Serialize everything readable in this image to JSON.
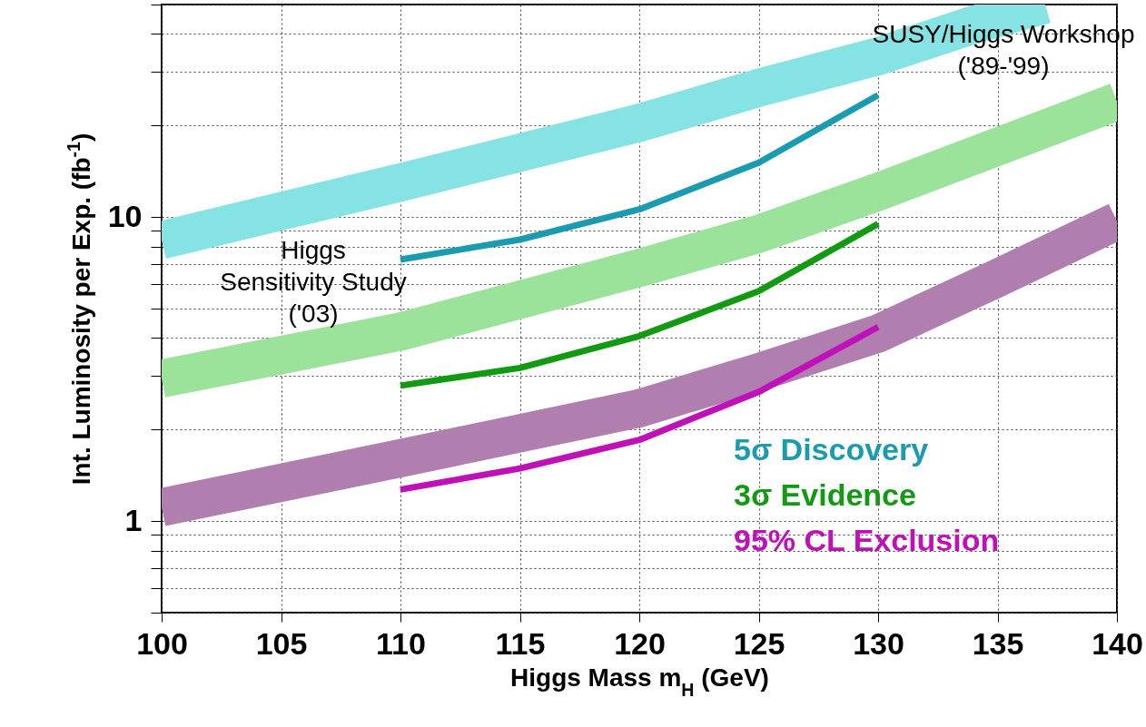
{
  "chart_data": {
    "type": "line",
    "xlabel": "Higgs Mass m$_{H}$ (GeV)",
    "ylabel": "Int. Luminosity per Exp. (fb$^{-1}$)",
    "log": true,
    "grid": true,
    "legend": "bottom right",
    "marker": "none",
    "line_style": "solid",
    "xlim": [
      100,
      140
    ],
    "xticks": [
      100,
      105,
      110,
      115,
      120,
      125,
      130,
      135,
      140
    ],
    "ylim": [
      0.5,
      50
    ],
    "yticks": [
      {
        "value": 0.5,
        "label": null
      },
      {
        "value": 0.6,
        "label": null
      },
      {
        "value": 0.7,
        "label": null
      },
      {
        "value": 0.8,
        "label": null
      },
      {
        "value": 0.9,
        "label": null
      },
      1,
      {
        "value": 2,
        "label": null
      },
      {
        "value": 3,
        "label": null
      },
      {
        "value": 4,
        "label": null
      },
      {
        "value": 5,
        "label": null
      },
      {
        "value": 6,
        "label": null
      },
      {
        "value": 7,
        "label": null
      },
      {
        "value": 8,
        "label": null
      },
      {
        "value": 9,
        "label": null
      },
      10,
      {
        "value": 20,
        "label": null
      },
      {
        "value": 30,
        "label": null
      },
      {
        "value": 40,
        "label": null
      },
      {
        "value": 50,
        "label": null
      }
    ],
    "annotations": [
      "SUSY/Higgs Workshop\n('89-'99)",
      "Higgs\nSensitivity Study\n('03)"
    ],
    "series": [
      {
        "color": "#86e3e3",
        "x": [
          100,
          110,
          120,
          125,
          130,
          134,
          137
        ],
        "values": [
          8.4,
          13.0,
          20.4,
          26.6,
          33.8,
          42.9,
          50
        ]
      },
      {
        "color": "#9be39a",
        "x": [
          100,
          110,
          120,
          125,
          130,
          140
        ],
        "values": [
          2.94,
          4.2,
          6.8,
          8.8,
          12.1,
          24.0
        ]
      },
      {
        "color": "#b07fb0",
        "x": [
          100,
          110,
          120,
          125,
          130,
          135,
          140
        ],
        "values": [
          1.11,
          1.61,
          2.35,
          3.09,
          4.14,
          6.3,
          9.7
        ]
      },
      {
        "name": "5σ Discovery",
        "color": "#1a9bb0",
        "x": [
          110,
          115,
          120,
          125,
          130
        ],
        "values": [
          7.25,
          8.43,
          10.6,
          15.1,
          25.2
        ]
      },
      {
        "name": "3σ Evidence",
        "color": "#129a12",
        "x": [
          110,
          115,
          120,
          125,
          130
        ],
        "values": [
          2.79,
          3.19,
          4.06,
          5.71,
          9.5
        ]
      },
      {
        "name": "95% CL Exclusion",
        "color": "#c010b8",
        "x": [
          110,
          115,
          120,
          125,
          130
        ],
        "values": [
          1.27,
          1.49,
          1.85,
          2.66,
          4.35
        ]
      }
    ]
  }
}
